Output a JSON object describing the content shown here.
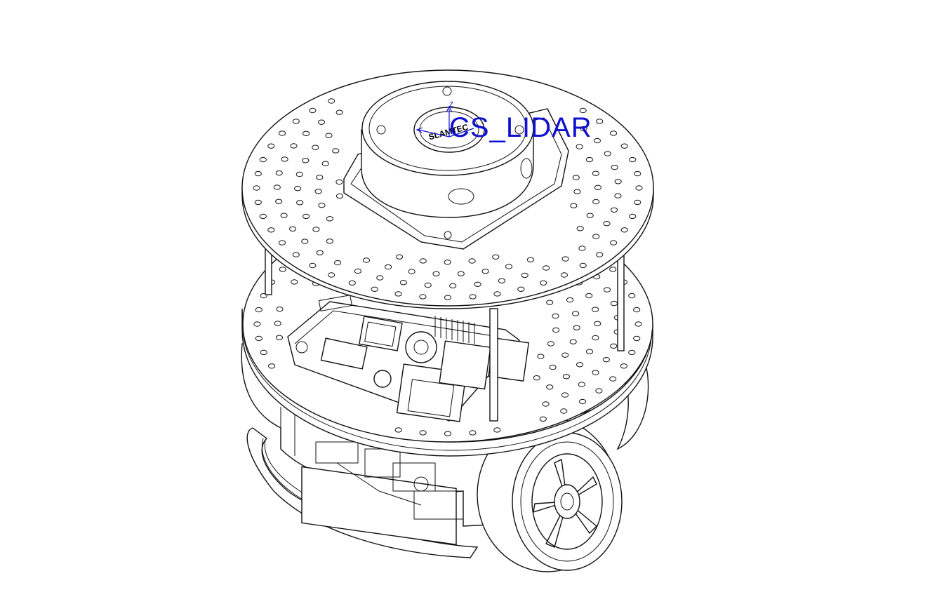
{
  "coordinate_system": {
    "label": "CS_LIDAR",
    "axis_z_label": "Z",
    "color": "#1010d0"
  },
  "lidar_badge_text": "SLAMTEC"
}
